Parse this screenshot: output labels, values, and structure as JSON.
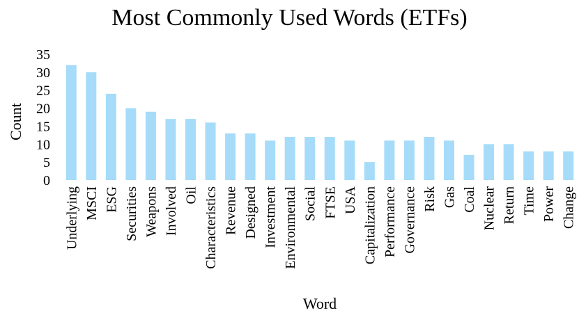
{
  "chart_data": {
    "type": "bar",
    "title": "Most Commonly Used Words (ETFs)",
    "xlabel": "Word",
    "ylabel": "Count",
    "ylim": [
      0,
      35
    ],
    "yticks": [
      0,
      5,
      10,
      15,
      20,
      25,
      30,
      35
    ],
    "grid": false,
    "bar_color": "#a6dcf9",
    "categories": [
      "Underlying",
      "MSCI",
      "ESG",
      "Securities",
      "Weapons",
      "Involved",
      "Oil",
      "Characteristics",
      "Revenue",
      "Designed",
      "Investment",
      "Environmental",
      "Social",
      "FTSE",
      "USA",
      "Capitalization",
      "Performance",
      "Governance",
      "Risk",
      "Gas",
      "Coal",
      "Nuclear",
      "Return",
      "Time",
      "Power",
      "Change"
    ],
    "values": [
      32,
      30,
      24,
      20,
      19,
      17,
      17,
      16,
      13,
      13,
      11,
      12,
      12,
      12,
      11,
      5,
      11,
      11,
      12,
      11,
      7,
      10,
      10,
      8,
      8,
      8
    ]
  }
}
